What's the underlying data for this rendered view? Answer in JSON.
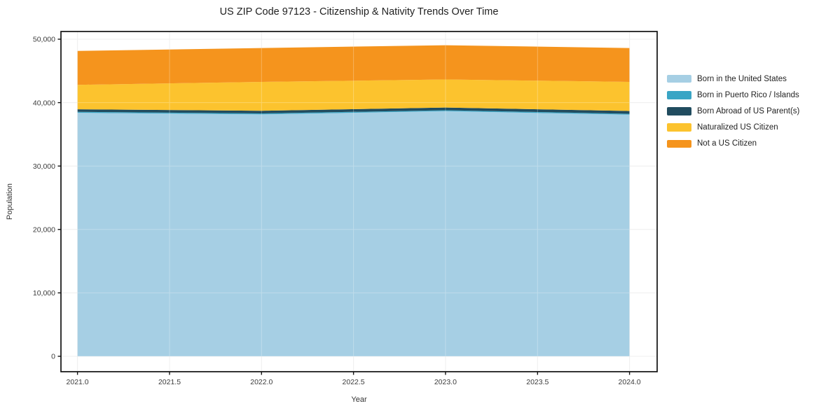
{
  "chart_data": {
    "type": "area",
    "stacked": true,
    "title": "US ZIP Code 97123 - Citizenship & Nativity Trends Over Time",
    "xlabel": "Year",
    "ylabel": "Population",
    "x": [
      2021,
      2022,
      2023,
      2024
    ],
    "series": [
      {
        "name": "Born in the United States",
        "color": "#a6cfe4",
        "values": [
          38400,
          38150,
          38650,
          38100
        ]
      },
      {
        "name": "Born in Puerto Rico / Islands",
        "color": "#3aa5c5",
        "values": [
          150,
          150,
          150,
          150
        ]
      },
      {
        "name": "Born Abroad of US Parent(s)",
        "color": "#214c5f",
        "values": [
          400,
          420,
          430,
          430
        ]
      },
      {
        "name": "Naturalized US Citizen",
        "color": "#fcc32e",
        "values": [
          3850,
          4550,
          4420,
          4590
        ]
      },
      {
        "name": "Not a US Citizen",
        "color": "#f5941d",
        "values": [
          5350,
          5340,
          5400,
          5340
        ]
      }
    ],
    "totals": [
      48150,
      48610,
      49050,
      48610
    ],
    "x_ticks": [
      2021.0,
      2021.5,
      2022.0,
      2022.5,
      2023.0,
      2023.5,
      2024.0
    ],
    "x_tick_labels": [
      "2021.0",
      "2021.5",
      "2022.0",
      "2022.5",
      "2023.0",
      "2023.5",
      "2024.0"
    ],
    "y_ticks": [
      0,
      10000,
      20000,
      30000,
      40000,
      50000
    ],
    "y_tick_labels": [
      "0",
      "10,000",
      "20,000",
      "30,000",
      "40,000",
      "50,000"
    ],
    "xlim": [
      2020.91,
      2024.15
    ],
    "ylim": [
      -2430,
      51215
    ],
    "grid": true,
    "grid_color": "#e9e9e9",
    "spine_color": "#111111",
    "background": "#ffffff",
    "legend_position": "right-outside"
  }
}
